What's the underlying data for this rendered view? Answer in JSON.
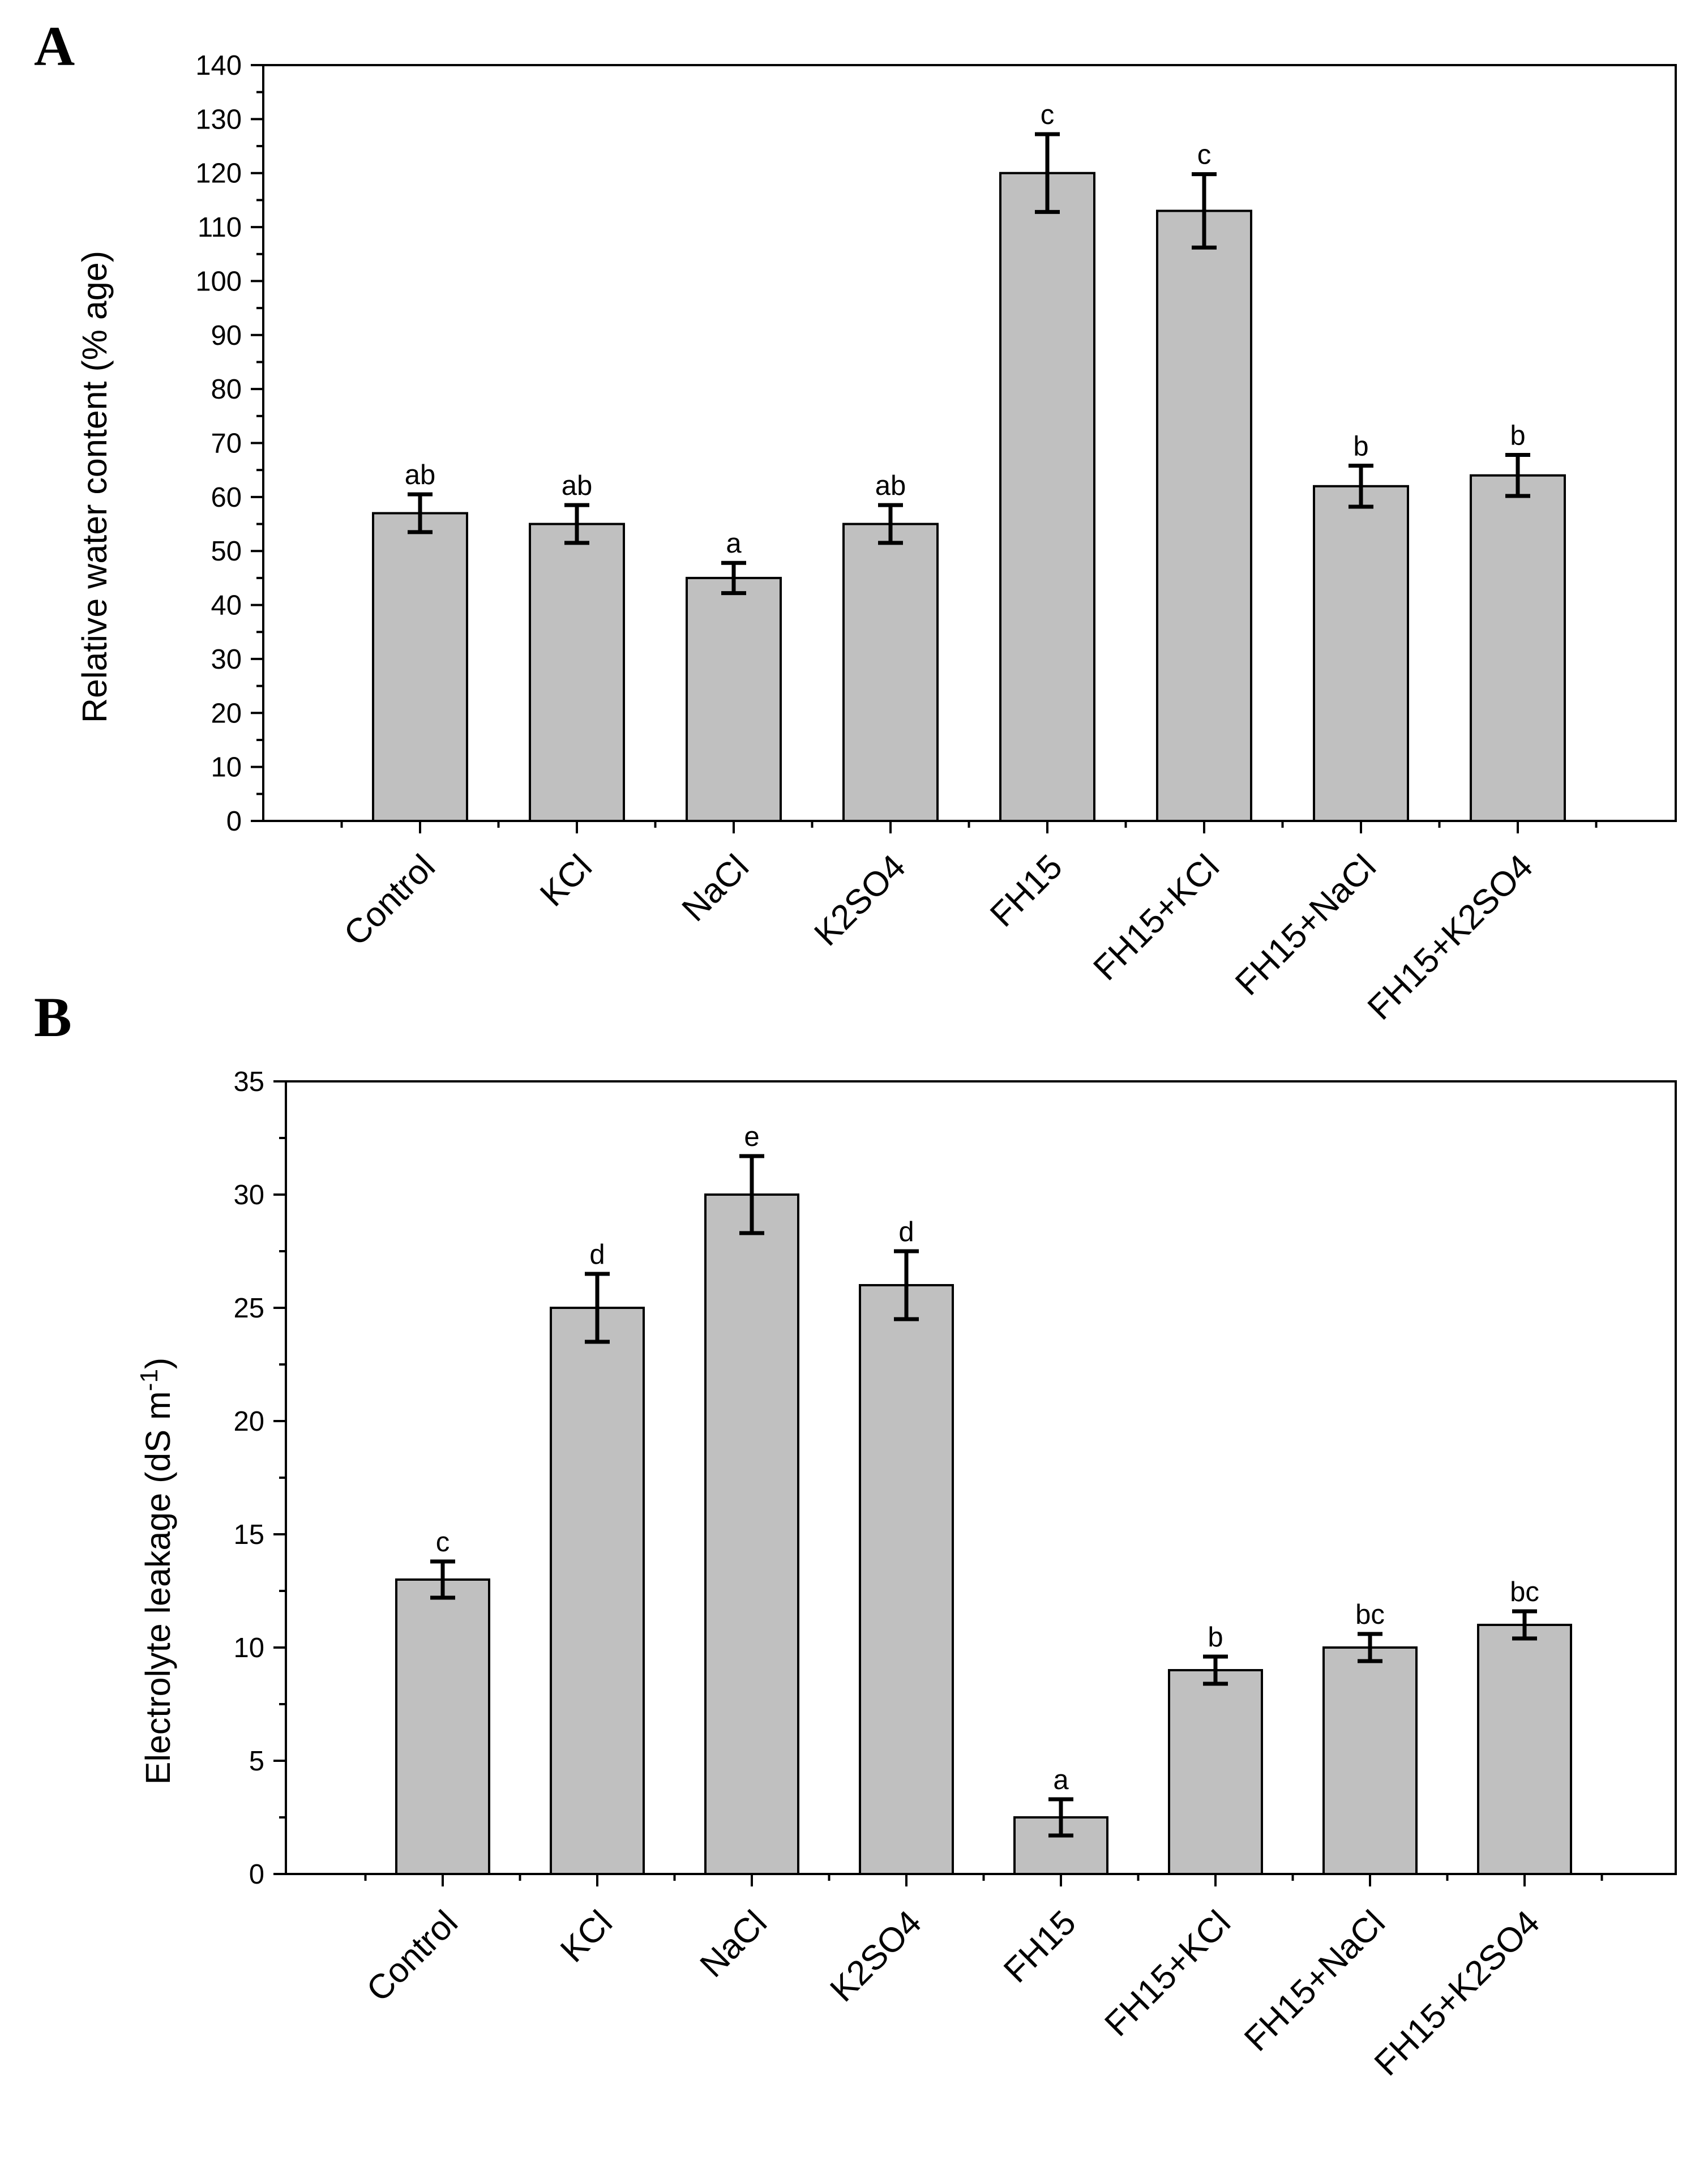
{
  "chart_data": [
    {
      "type": "bar",
      "panel": "A",
      "categories": [
        "Control",
        "KCl",
        "NaCl",
        "K2SO4",
        "FH15",
        "FH15+KCl",
        "FH15+NaCl",
        "FH15+K2SO4"
      ],
      "values": [
        57,
        55,
        45,
        55,
        120,
        113,
        62,
        64
      ],
      "errors": [
        3.5,
        3.5,
        2.8,
        3.5,
        7.2,
        6.8,
        3.8,
        3.8
      ],
      "significance": [
        "ab",
        "ab",
        "a",
        "ab",
        "c",
        "c",
        "b",
        "b"
      ],
      "ylabel": "Relative water content (% age)",
      "xlabel": "",
      "ylim": [
        0,
        140
      ],
      "yticks": [
        0,
        10,
        20,
        30,
        40,
        50,
        60,
        70,
        80,
        90,
        100,
        110,
        120,
        130,
        140
      ],
      "ytick_labels": [
        "0",
        "10",
        "20",
        "30",
        "40",
        "50",
        "60",
        "70",
        "80",
        "90",
        "100",
        "110",
        "120",
        "130",
        "140"
      ],
      "grid": false
    },
    {
      "type": "bar",
      "panel": "B",
      "categories": [
        "Control",
        "KCl",
        "NaCl",
        "K2SO4",
        "FH15",
        "FH15+KCl",
        "FH15+NaCl",
        "FH15+K2SO4"
      ],
      "values": [
        13,
        25,
        30,
        26,
        2.5,
        9,
        10,
        11
      ],
      "errors": [
        0.8,
        1.5,
        1.7,
        1.5,
        0.8,
        0.6,
        0.6,
        0.6
      ],
      "significance": [
        "c",
        "d",
        "e",
        "d",
        "a",
        "b",
        "bc",
        "bc"
      ],
      "ylabel": "Electrolyte leakage (dS m",
      "ylabel_superscript": "-1",
      "ylabel_close": ")",
      "xlabel": "",
      "ylim": [
        0,
        35
      ],
      "yticks": [
        0,
        5,
        10,
        15,
        20,
        25,
        30,
        35
      ],
      "ytick_labels": [
        "0",
        "5",
        "10",
        "15",
        "20",
        "25",
        "30",
        "35"
      ],
      "grid": false
    }
  ]
}
